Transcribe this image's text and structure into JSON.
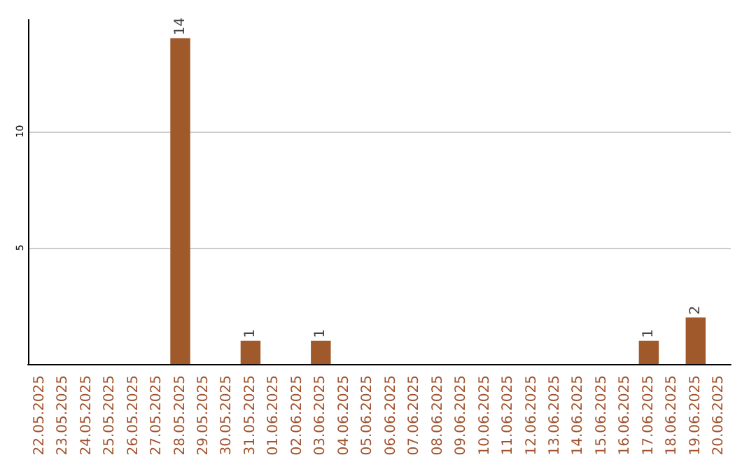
{
  "chart_data": {
    "type": "bar",
    "categories": [
      "22.05.2025",
      "23.05.2025",
      "24.05.2025",
      "25.05.2025",
      "26.05.2025",
      "27.05.2025",
      "28.05.2025",
      "29.05.2025",
      "30.05.2025",
      "31.05.2025",
      "01.06.2025",
      "02.06.2025",
      "03.06.2025",
      "04.06.2025",
      "05.06.2025",
      "06.06.2025",
      "07.06.2025",
      "08.06.2025",
      "09.06.2025",
      "10.06.2025",
      "11.06.2025",
      "12.06.2025",
      "13.06.2025",
      "14.06.2025",
      "15.06.2025",
      "16.06.2025",
      "17.06.2025",
      "18.06.2025",
      "19.06.2025",
      "20.06.2025"
    ],
    "values": [
      0,
      0,
      0,
      0,
      0,
      0,
      14,
      0,
      0,
      1,
      0,
      0,
      1,
      0,
      0,
      0,
      0,
      0,
      0,
      0,
      0,
      0,
      0,
      0,
      0,
      0,
      1,
      0,
      2,
      0
    ],
    "value_labels": [
      null,
      null,
      null,
      null,
      null,
      null,
      "14",
      null,
      null,
      "1",
      null,
      null,
      "1",
      null,
      null,
      null,
      null,
      null,
      null,
      null,
      null,
      null,
      null,
      null,
      null,
      null,
      "1",
      null,
      "2",
      null
    ],
    "color": "#a0592a",
    "ylim": [
      0,
      14.8
    ],
    "yticks": [
      5,
      10
    ],
    "grid": "y"
  }
}
